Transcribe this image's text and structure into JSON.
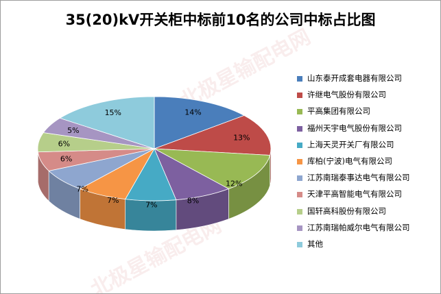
{
  "watermark": "北极星输配电网",
  "chart_data": {
    "type": "pie",
    "title": "35(20)kV开关柜中标前10名的公司中标占比图",
    "categories": [
      "山东泰开成套电器有限公司",
      "许继电气股份有限公司",
      "平高集团有限公司",
      "福州天宇电气股份有限公司",
      "上海天灵开关厂有限公司",
      "库柏(宁波)电气有限公司",
      "江苏南瑞泰事达电气有限公司",
      "天津平高智能电气有限公司",
      "国轩高科股份有限公司",
      "江苏南瑞帕威尔电气有限公司",
      "其他"
    ],
    "values": [
      14,
      13,
      12,
      8,
      7,
      7,
      7,
      6,
      6,
      5,
      15
    ],
    "value_labels": [
      "14%",
      "13%",
      "12%",
      "8%",
      "7%",
      "7%",
      "7%",
      "6%",
      "6%",
      "5%",
      "15%"
    ],
    "colors": [
      "#4a7ebb",
      "#be4b48",
      "#98b954",
      "#7d60a0",
      "#46aac5",
      "#f69545",
      "#8ea6cf",
      "#d58b88",
      "#b6ce8a",
      "#a695c2",
      "#8ecbdc"
    ],
    "legend_position": "right",
    "style": "3d"
  }
}
